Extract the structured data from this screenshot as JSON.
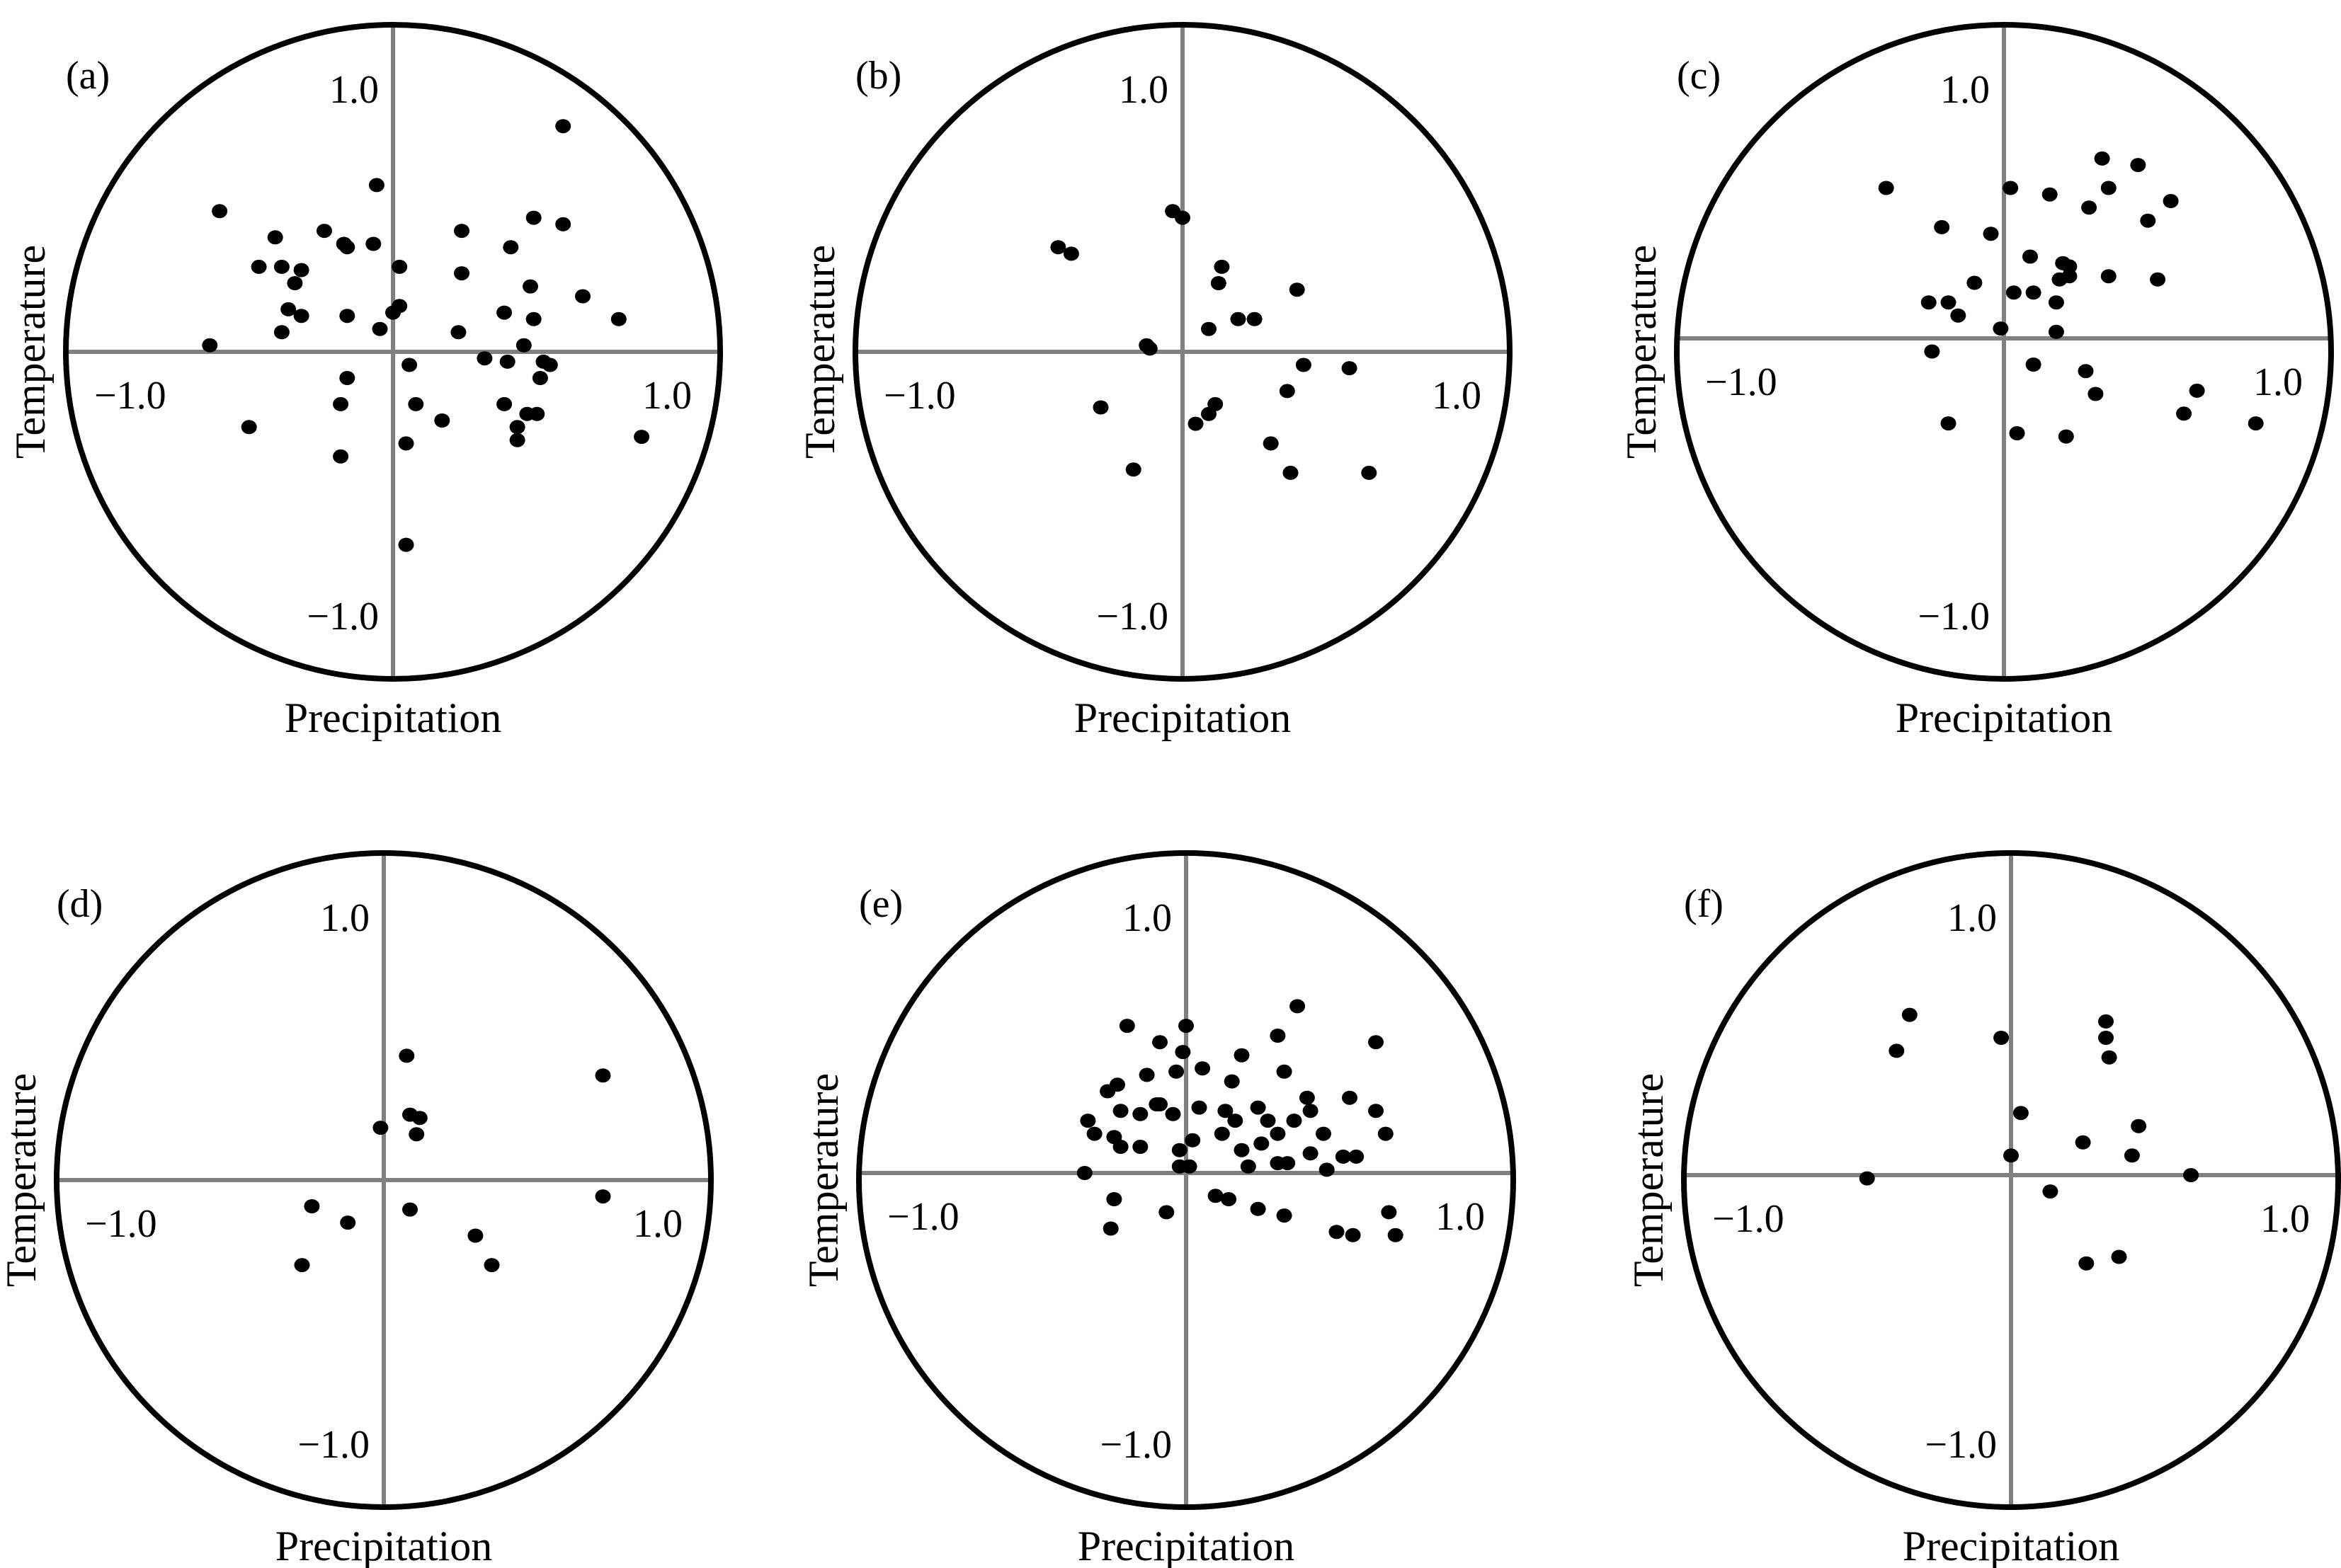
{
  "figure": {
    "colors": {
      "circle": "#000000",
      "axes": "#808080",
      "points": "#000000"
    }
  },
  "chart_data": [
    {
      "type": "scatter",
      "panel_label": "(a)",
      "xlabel": "Precipitation",
      "ylabel": "Temperature",
      "xlim": [
        -1.0,
        1.0
      ],
      "ylim": [
        -1.0,
        1.0
      ],
      "tick_labels": {
        "x_neg": "−1.0",
        "x_pos": "1.0",
        "y_pos": "1.0",
        "y_neg": "−1.0"
      },
      "points": [
        [
          0.52,
          0.69
        ],
        [
          -0.05,
          0.51
        ],
        [
          -0.53,
          0.43
        ],
        [
          -0.36,
          0.35
        ],
        [
          -0.21,
          0.37
        ],
        [
          -0.15,
          0.33
        ],
        [
          -0.14,
          0.32
        ],
        [
          -0.06,
          0.33
        ],
        [
          -0.34,
          0.26
        ],
        [
          -0.28,
          0.25
        ],
        [
          -0.41,
          0.26
        ],
        [
          -0.3,
          0.21
        ],
        [
          0.02,
          0.26
        ],
        [
          0.21,
          0.37
        ],
        [
          0.43,
          0.41
        ],
        [
          0.52,
          0.39
        ],
        [
          0.36,
          0.32
        ],
        [
          0.21,
          0.24
        ],
        [
          0.42,
          0.2
        ],
        [
          0.58,
          0.17
        ],
        [
          0.69,
          0.1
        ],
        [
          -0.32,
          0.13
        ],
        [
          -0.28,
          0.11
        ],
        [
          -0.14,
          0.11
        ],
        [
          0.0,
          0.12
        ],
        [
          0.02,
          0.14
        ],
        [
          0.34,
          0.12
        ],
        [
          0.43,
          0.1
        ],
        [
          -0.34,
          0.06
        ],
        [
          0.2,
          0.06
        ],
        [
          0.4,
          0.02
        ],
        [
          -0.04,
          0.07
        ],
        [
          -0.56,
          0.02
        ],
        [
          0.28,
          -0.02
        ],
        [
          0.35,
          -0.03
        ],
        [
          0.46,
          -0.03
        ],
        [
          0.48,
          -0.04
        ],
        [
          0.45,
          -0.08
        ],
        [
          0.05,
          -0.04
        ],
        [
          -0.14,
          -0.08
        ],
        [
          0.07,
          -0.16
        ],
        [
          0.34,
          -0.16
        ],
        [
          0.41,
          -0.19
        ],
        [
          0.44,
          -0.19
        ],
        [
          -0.16,
          -0.16
        ],
        [
          0.15,
          -0.21
        ],
        [
          0.38,
          -0.23
        ],
        [
          0.38,
          -0.27
        ],
        [
          0.04,
          -0.28
        ],
        [
          -0.44,
          -0.23
        ],
        [
          0.76,
          -0.26
        ],
        [
          -0.16,
          -0.32
        ],
        [
          0.04,
          -0.59
        ]
      ]
    },
    {
      "type": "scatter",
      "panel_label": "(b)",
      "xlabel": "Precipitation",
      "ylabel": "Temperature",
      "xlim": [
        -1.0,
        1.0
      ],
      "ylim": [
        -1.0,
        1.0
      ],
      "tick_labels": {
        "x_neg": "−1.0",
        "x_pos": "1.0",
        "y_pos": "1.0",
        "y_neg": "−1.0"
      },
      "points": [
        [
          -0.38,
          0.32
        ],
        [
          -0.34,
          0.3
        ],
        [
          -0.03,
          0.43
        ],
        [
          0.0,
          0.41
        ],
        [
          0.12,
          0.26
        ],
        [
          0.11,
          0.21
        ],
        [
          0.35,
          0.19
        ],
        [
          0.17,
          0.1
        ],
        [
          0.22,
          0.1
        ],
        [
          0.08,
          0.07
        ],
        [
          -0.11,
          0.02
        ],
        [
          -0.1,
          0.01
        ],
        [
          0.37,
          -0.04
        ],
        [
          0.51,
          -0.05
        ],
        [
          0.32,
          -0.12
        ],
        [
          0.1,
          -0.16
        ],
        [
          0.08,
          -0.19
        ],
        [
          0.04,
          -0.22
        ],
        [
          -0.25,
          -0.17
        ],
        [
          0.27,
          -0.28
        ],
        [
          -0.15,
          -0.36
        ],
        [
          0.33,
          -0.37
        ],
        [
          0.57,
          -0.37
        ]
      ]
    },
    {
      "type": "scatter",
      "panel_label": "(c)",
      "xlabel": "Precipitation",
      "ylabel": "Temperature",
      "xlim": [
        -1.0,
        1.0
      ],
      "ylim": [
        -1.0,
        1.0
      ],
      "tick_labels": {
        "x_neg": "−1.0",
        "x_pos": "1.0",
        "y_pos": "1.0",
        "y_neg": "−1.0"
      },
      "points": [
        [
          0.3,
          0.55
        ],
        [
          0.41,
          0.53
        ],
        [
          -0.36,
          0.46
        ],
        [
          0.02,
          0.46
        ],
        [
          0.14,
          0.44
        ],
        [
          0.32,
          0.46
        ],
        [
          0.51,
          0.42
        ],
        [
          0.26,
          0.4
        ],
        [
          0.44,
          0.36
        ],
        [
          -0.19,
          0.34
        ],
        [
          -0.04,
          0.32
        ],
        [
          0.08,
          0.25
        ],
        [
          0.18,
          0.23
        ],
        [
          0.2,
          0.22
        ],
        [
          0.2,
          0.19
        ],
        [
          0.32,
          0.19
        ],
        [
          0.47,
          0.18
        ],
        [
          -0.09,
          0.17
        ],
        [
          0.03,
          0.14
        ],
        [
          0.09,
          0.14
        ],
        [
          -0.17,
          0.11
        ],
        [
          -0.23,
          0.11
        ],
        [
          -0.14,
          0.07
        ],
        [
          0.16,
          0.11
        ],
        [
          0.17,
          0.18
        ],
        [
          -0.01,
          0.03
        ],
        [
          0.16,
          0.02
        ],
        [
          -0.22,
          -0.04
        ],
        [
          0.09,
          -0.08
        ],
        [
          0.25,
          -0.1
        ],
        [
          0.28,
          -0.17
        ],
        [
          0.59,
          -0.16
        ],
        [
          0.55,
          -0.23
        ],
        [
          0.77,
          -0.26
        ],
        [
          -0.17,
          -0.26
        ],
        [
          0.04,
          -0.29
        ],
        [
          0.19,
          -0.3
        ]
      ]
    },
    {
      "type": "scatter",
      "panel_label": "(d)",
      "xlabel": "Precipitation",
      "ylabel": "Temperature",
      "xlim": [
        -1.0,
        1.0
      ],
      "ylim": [
        -1.0,
        1.0
      ],
      "tick_labels": {
        "x_neg": "−1.0",
        "x_pos": "1.0",
        "y_pos": "1.0",
        "y_neg": "−1.0"
      },
      "points": [
        [
          0.07,
          0.38
        ],
        [
          0.67,
          0.32
        ],
        [
          0.08,
          0.2
        ],
        [
          0.11,
          0.19
        ],
        [
          0.1,
          0.14
        ],
        [
          -0.01,
          0.16
        ],
        [
          0.67,
          -0.05
        ],
        [
          -0.22,
          -0.08
        ],
        [
          0.08,
          -0.09
        ],
        [
          -0.11,
          -0.13
        ],
        [
          0.28,
          -0.17
        ],
        [
          -0.25,
          -0.26
        ],
        [
          0.33,
          -0.26
        ]
      ]
    },
    {
      "type": "scatter",
      "panel_label": "(e)",
      "xlabel": "Precipitation",
      "ylabel": "Temperature",
      "xlim": [
        -1.0,
        1.0
      ],
      "ylim": [
        -1.0,
        1.0
      ],
      "tick_labels": {
        "x_neg": "−1.0",
        "x_pos": "1.0",
        "y_pos": "1.0",
        "y_neg": "−1.0"
      },
      "points": [
        [
          0.34,
          0.51
        ],
        [
          -0.18,
          0.45
        ],
        [
          0.0,
          0.45
        ],
        [
          0.28,
          0.42
        ],
        [
          0.58,
          0.4
        ],
        [
          -0.08,
          0.4
        ],
        [
          -0.01,
          0.37
        ],
        [
          0.17,
          0.36
        ],
        [
          -0.12,
          0.3
        ],
        [
          -0.03,
          0.31
        ],
        [
          0.3,
          0.31
        ],
        [
          -0.24,
          0.25
        ],
        [
          -0.21,
          0.27
        ],
        [
          0.05,
          0.32
        ],
        [
          0.14,
          0.28
        ],
        [
          0.37,
          0.23
        ],
        [
          0.5,
          0.23
        ],
        [
          -0.08,
          0.21
        ],
        [
          0.04,
          0.2
        ],
        [
          -0.2,
          0.19
        ],
        [
          -0.09,
          0.21
        ],
        [
          0.22,
          0.2
        ],
        [
          0.38,
          0.19
        ],
        [
          0.58,
          0.19
        ],
        [
          -0.3,
          0.16
        ],
        [
          -0.28,
          0.12
        ],
        [
          -0.14,
          0.18
        ],
        [
          -0.04,
          0.18
        ],
        [
          0.12,
          0.19
        ],
        [
          0.15,
          0.16
        ],
        [
          0.25,
          0.16
        ],
        [
          0.28,
          0.12
        ],
        [
          0.33,
          0.16
        ],
        [
          0.42,
          0.12
        ],
        [
          0.61,
          0.12
        ],
        [
          -0.2,
          0.08
        ],
        [
          -0.22,
          0.11
        ],
        [
          -0.14,
          0.08
        ],
        [
          0.02,
          0.1
        ],
        [
          -0.02,
          0.07
        ],
        [
          0.11,
          0.12
        ],
        [
          0.17,
          0.07
        ],
        [
          0.23,
          0.09
        ],
        [
          0.38,
          0.06
        ],
        [
          0.48,
          0.05
        ],
        [
          0.52,
          0.05
        ],
        [
          -0.31,
          0.0
        ],
        [
          0.01,
          0.02
        ],
        [
          -0.02,
          0.02
        ],
        [
          0.19,
          0.02
        ],
        [
          0.28,
          0.03
        ],
        [
          0.31,
          0.03
        ],
        [
          0.43,
          0.01
        ],
        [
          -0.22,
          -0.08
        ],
        [
          0.09,
          -0.07
        ],
        [
          0.13,
          -0.08
        ],
        [
          0.22,
          -0.11
        ],
        [
          -0.06,
          -0.12
        ],
        [
          0.3,
          -0.13
        ],
        [
          0.62,
          -0.12
        ],
        [
          -0.23,
          -0.17
        ],
        [
          0.46,
          -0.18
        ],
        [
          0.51,
          -0.19
        ],
        [
          0.64,
          -0.19
        ]
      ]
    },
    {
      "type": "scatter",
      "panel_label": "(f)",
      "xlabel": "Precipitation",
      "ylabel": "Temperature",
      "xlim": [
        -1.0,
        1.0
      ],
      "ylim": [
        -1.0,
        1.0
      ],
      "tick_labels": {
        "x_neg": "−1.0",
        "x_pos": "1.0",
        "y_pos": "1.0",
        "y_neg": "−1.0"
      },
      "points": [
        [
          -0.31,
          0.49
        ],
        [
          0.29,
          0.47
        ],
        [
          0.29,
          0.42
        ],
        [
          -0.35,
          0.38
        ],
        [
          -0.03,
          0.42
        ],
        [
          0.3,
          0.36
        ],
        [
          0.03,
          0.19
        ],
        [
          0.39,
          0.15
        ],
        [
          0.22,
          0.1
        ],
        [
          0.37,
          0.06
        ],
        [
          0.0,
          0.06
        ],
        [
          0.55,
          0.0
        ],
        [
          -0.44,
          -0.01
        ],
        [
          0.12,
          -0.05
        ],
        [
          0.23,
          -0.27
        ],
        [
          0.33,
          -0.25
        ]
      ]
    }
  ]
}
